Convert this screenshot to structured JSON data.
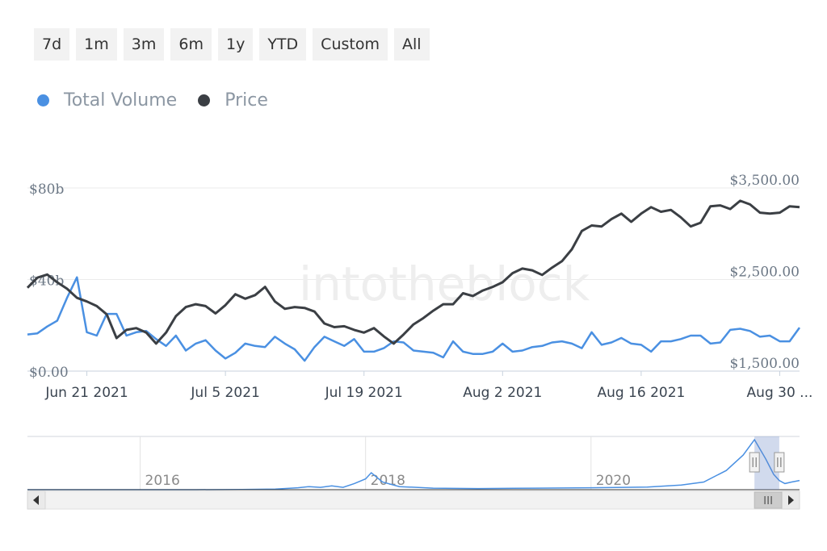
{
  "range_selector": {
    "buttons": [
      "7d",
      "1m",
      "3m",
      "6m",
      "1y",
      "YTD",
      "Custom",
      "All"
    ]
  },
  "watermark": "intotheblock",
  "chart_data": {
    "type": "line",
    "title": "",
    "xlabel": "",
    "ylabel": "",
    "legend_position": "top-left",
    "x_start": "2021-06-15",
    "x_end": "2021-09-01",
    "x_ticks": [
      {
        "date": "2021-06-21",
        "label": "Jun 21 2021"
      },
      {
        "date": "2021-07-05",
        "label": "Jul 5 2021"
      },
      {
        "date": "2021-07-19",
        "label": "Jul 19 2021"
      },
      {
        "date": "2021-08-02",
        "label": "Aug 2 2021"
      },
      {
        "date": "2021-08-16",
        "label": "Aug 16 2021"
      },
      {
        "date": "2021-08-30",
        "label": "Aug 30 ..."
      }
    ],
    "y_left": {
      "min": 0,
      "max": 80,
      "ticks": [
        {
          "value": 0,
          "label": "$0.00"
        },
        {
          "value": 40,
          "label": "$40b"
        },
        {
          "value": 80,
          "label": "$80b"
        }
      ]
    },
    "y_right": {
      "min": 1500,
      "max": 3500,
      "ticks": [
        {
          "value": 1500,
          "label": "$1,500.00"
        },
        {
          "value": 2500,
          "label": "$2,500.00"
        },
        {
          "value": 3500,
          "label": "$3,500.00"
        }
      ]
    },
    "grid": true,
    "series": [
      {
        "name": "Total Volume",
        "color": "#4a90e2",
        "axis": "left",
        "values": [
          [
            "2021-06-15",
            16
          ],
          [
            "2021-06-16",
            16.5
          ],
          [
            "2021-06-17",
            19.5
          ],
          [
            "2021-06-18",
            22
          ],
          [
            "2021-06-19",
            32
          ],
          [
            "2021-06-20",
            41
          ],
          [
            "2021-06-21",
            17
          ],
          [
            "2021-06-22",
            15.5
          ],
          [
            "2021-06-23",
            25
          ],
          [
            "2021-06-24",
            25
          ],
          [
            "2021-06-25",
            15.5
          ],
          [
            "2021-06-26",
            17
          ],
          [
            "2021-06-27",
            17.5
          ],
          [
            "2021-06-28",
            14
          ],
          [
            "2021-06-29",
            11
          ],
          [
            "2021-06-30",
            15.5
          ],
          [
            "2021-07-01",
            9
          ],
          [
            "2021-07-02",
            12
          ],
          [
            "2021-07-03",
            13.5
          ],
          [
            "2021-07-04",
            9
          ],
          [
            "2021-07-05",
            5.5
          ],
          [
            "2021-07-06",
            8
          ],
          [
            "2021-07-07",
            12
          ],
          [
            "2021-07-08",
            11
          ],
          [
            "2021-07-09",
            10.5
          ],
          [
            "2021-07-10",
            15
          ],
          [
            "2021-07-11",
            12
          ],
          [
            "2021-07-12",
            9.5
          ],
          [
            "2021-07-13",
            4.5
          ],
          [
            "2021-07-14",
            10.5
          ],
          [
            "2021-07-15",
            15
          ],
          [
            "2021-07-16",
            13
          ],
          [
            "2021-07-17",
            11
          ],
          [
            "2021-07-18",
            14
          ],
          [
            "2021-07-19",
            8.5
          ],
          [
            "2021-07-20",
            8.5
          ],
          [
            "2021-07-21",
            10
          ],
          [
            "2021-07-22",
            13
          ],
          [
            "2021-07-23",
            12.5
          ],
          [
            "2021-07-24",
            9
          ],
          [
            "2021-07-25",
            8.5
          ],
          [
            "2021-07-26",
            8
          ],
          [
            "2021-07-27",
            6
          ],
          [
            "2021-07-28",
            13
          ],
          [
            "2021-07-29",
            8.5
          ],
          [
            "2021-07-30",
            7.5
          ],
          [
            "2021-07-31",
            7.5
          ],
          [
            "2021-08-01",
            8.5
          ],
          [
            "2021-08-02",
            12
          ],
          [
            "2021-08-03",
            8.5
          ],
          [
            "2021-08-04",
            9
          ],
          [
            "2021-08-05",
            10.5
          ],
          [
            "2021-08-06",
            11
          ],
          [
            "2021-08-07",
            12.5
          ],
          [
            "2021-08-08",
            13
          ],
          [
            "2021-08-09",
            12
          ],
          [
            "2021-08-10",
            10
          ],
          [
            "2021-08-11",
            17
          ],
          [
            "2021-08-12",
            11.5
          ],
          [
            "2021-08-13",
            12.5
          ],
          [
            "2021-08-14",
            14.5
          ],
          [
            "2021-08-15",
            12
          ],
          [
            "2021-08-16",
            11.5
          ],
          [
            "2021-08-17",
            8.5
          ],
          [
            "2021-08-18",
            13
          ],
          [
            "2021-08-19",
            13
          ],
          [
            "2021-08-20",
            14
          ],
          [
            "2021-08-21",
            15.5
          ],
          [
            "2021-08-22",
            15.5
          ],
          [
            "2021-08-23",
            12
          ],
          [
            "2021-08-24",
            12.5
          ],
          [
            "2021-08-25",
            18
          ],
          [
            "2021-08-26",
            18.5
          ],
          [
            "2021-08-27",
            17.5
          ],
          [
            "2021-08-28",
            15
          ],
          [
            "2021-08-29",
            15.5
          ],
          [
            "2021-08-30",
            13
          ],
          [
            "2021-08-31",
            13
          ],
          [
            "2021-09-01",
            19
          ]
        ]
      },
      {
        "name": "Price",
        "color": "#3b3f44",
        "axis": "right",
        "values": [
          [
            "2021-06-15",
            2410
          ],
          [
            "2021-06-16",
            2520
          ],
          [
            "2021-06-17",
            2555
          ],
          [
            "2021-06-18",
            2470
          ],
          [
            "2021-06-19",
            2400
          ],
          [
            "2021-06-20",
            2300
          ],
          [
            "2021-06-21",
            2260
          ],
          [
            "2021-06-22",
            2210
          ],
          [
            "2021-06-23",
            2120
          ],
          [
            "2021-06-24",
            1860
          ],
          [
            "2021-06-25",
            1950
          ],
          [
            "2021-06-26",
            1970
          ],
          [
            "2021-06-27",
            1920
          ],
          [
            "2021-06-28",
            1800
          ],
          [
            "2021-06-29",
            1920
          ],
          [
            "2021-06-30",
            2100
          ],
          [
            "2021-07-01",
            2200
          ],
          [
            "2021-07-02",
            2230
          ],
          [
            "2021-07-03",
            2210
          ],
          [
            "2021-07-04",
            2130
          ],
          [
            "2021-07-05",
            2220
          ],
          [
            "2021-07-06",
            2340
          ],
          [
            "2021-07-07",
            2290
          ],
          [
            "2021-07-08",
            2330
          ],
          [
            "2021-07-09",
            2420
          ],
          [
            "2021-07-10",
            2260
          ],
          [
            "2021-07-11",
            2180
          ],
          [
            "2021-07-12",
            2200
          ],
          [
            "2021-07-13",
            2190
          ],
          [
            "2021-07-14",
            2150
          ],
          [
            "2021-07-15",
            2020
          ],
          [
            "2021-07-16",
            1980
          ],
          [
            "2021-07-17",
            1990
          ],
          [
            "2021-07-18",
            1950
          ],
          [
            "2021-07-19",
            1920
          ],
          [
            "2021-07-20",
            1970
          ],
          [
            "2021-07-21",
            1880
          ],
          [
            "2021-07-22",
            1800
          ],
          [
            "2021-07-23",
            1900
          ],
          [
            "2021-07-24",
            2010
          ],
          [
            "2021-07-25",
            2080
          ],
          [
            "2021-07-26",
            2160
          ],
          [
            "2021-07-27",
            2230
          ],
          [
            "2021-07-28",
            2230
          ],
          [
            "2021-07-29",
            2350
          ],
          [
            "2021-07-30",
            2320
          ],
          [
            "2021-07-31",
            2380
          ],
          [
            "2021-08-01",
            2420
          ],
          [
            "2021-08-02",
            2470
          ],
          [
            "2021-08-03",
            2570
          ],
          [
            "2021-08-04",
            2620
          ],
          [
            "2021-08-05",
            2600
          ],
          [
            "2021-08-06",
            2550
          ],
          [
            "2021-08-07",
            2630
          ],
          [
            "2021-08-08",
            2700
          ],
          [
            "2021-08-09",
            2830
          ],
          [
            "2021-08-10",
            3030
          ],
          [
            "2021-08-11",
            3090
          ],
          [
            "2021-08-12",
            3080
          ],
          [
            "2021-08-13",
            3160
          ],
          [
            "2021-08-14",
            3220
          ],
          [
            "2021-08-15",
            3130
          ],
          [
            "2021-08-16",
            3220
          ],
          [
            "2021-08-17",
            3290
          ],
          [
            "2021-08-18",
            3240
          ],
          [
            "2021-08-19",
            3260
          ],
          [
            "2021-08-20",
            3180
          ],
          [
            "2021-08-21",
            3080
          ],
          [
            "2021-08-22",
            3120
          ],
          [
            "2021-08-23",
            3300
          ],
          [
            "2021-08-24",
            3310
          ],
          [
            "2021-08-25",
            3270
          ],
          [
            "2021-08-26",
            3360
          ],
          [
            "2021-08-27",
            3320
          ],
          [
            "2021-08-28",
            3230
          ],
          [
            "2021-08-29",
            3220
          ],
          [
            "2021-08-30",
            3230
          ],
          [
            "2021-08-31",
            3300
          ],
          [
            "2021-09-01",
            3290
          ]
        ]
      }
    ],
    "navigator": {
      "year_labels": [
        "2016",
        "2018",
        "2020"
      ],
      "series": [
        {
          "name": "Total Volume",
          "values": [
            [
              2015.0,
              0
            ],
            [
              2015.5,
              0
            ],
            [
              2016.0,
              0
            ],
            [
              2016.5,
              0
            ],
            [
              2016.9,
              0.3
            ],
            [
              2017.2,
              0.8
            ],
            [
              2017.4,
              2.5
            ],
            [
              2017.5,
              4
            ],
            [
              2017.6,
              3
            ],
            [
              2017.7,
              5
            ],
            [
              2017.8,
              3
            ],
            [
              2017.9,
              8
            ],
            [
              2018.0,
              14
            ],
            [
              2018.05,
              22
            ],
            [
              2018.15,
              10
            ],
            [
              2018.3,
              4
            ],
            [
              2018.6,
              2
            ],
            [
              2019.0,
              1.5
            ],
            [
              2019.5,
              2
            ],
            [
              2020.0,
              2.5
            ],
            [
              2020.5,
              3.5
            ],
            [
              2020.8,
              6
            ],
            [
              2021.0,
              10
            ],
            [
              2021.2,
              25
            ],
            [
              2021.35,
              45
            ],
            [
              2021.45,
              65
            ],
            [
              2021.55,
              40
            ],
            [
              2021.62,
              20
            ],
            [
              2021.67,
              12
            ],
            [
              2021.72,
              8
            ],
            [
              2021.78,
              10
            ],
            [
              2021.85,
              12
            ]
          ]
        }
      ],
      "selected_range": [
        "2021-06-15",
        "2021-09-01"
      ]
    }
  }
}
